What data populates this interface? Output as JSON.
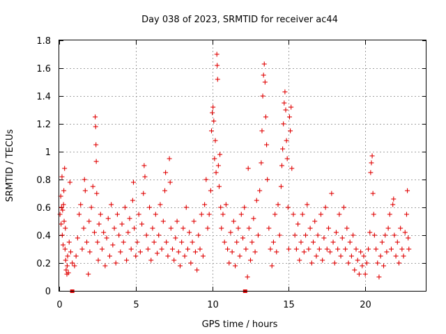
{
  "chart_data": {
    "type": "scatter",
    "title": "Day 038 of 2023, SRMTID for receiver ac44",
    "xlabel": "GPS time / hours",
    "ylabel": "SRMTID / TECUs",
    "xlim": [
      0,
      24
    ],
    "ylim": [
      0,
      1.8
    ],
    "xticks": [
      0,
      5,
      10,
      15,
      20
    ],
    "xtick_labels": [
      "0",
      "5",
      "10",
      "15",
      "20"
    ],
    "yticks": [
      0,
      0.2,
      0.4,
      0.6,
      0.8,
      1,
      1.2,
      1.4,
      1.6,
      1.8
    ],
    "ytick_labels": [
      "0",
      "0.2",
      "0.4",
      "0.6",
      "0.8",
      "1",
      "1.2",
      "1.4",
      "1.6",
      "1.8"
    ],
    "grid": true,
    "marker": "+",
    "color": "#e00000",
    "series": [
      {
        "name": "SRMTID",
        "points": [
          [
            0.05,
            0.55
          ],
          [
            0.1,
            0.68
          ],
          [
            0.12,
            0.48
          ],
          [
            0.15,
            0.6
          ],
          [
            0.18,
            0.82
          ],
          [
            0.2,
            0.4
          ],
          [
            0.22,
            0.58
          ],
          [
            0.25,
            0.33
          ],
          [
            0.28,
            0.62
          ],
          [
            0.3,
            0.72
          ],
          [
            0.32,
            0.5
          ],
          [
            0.35,
            0.88
          ],
          [
            0.38,
            0.3
          ],
          [
            0.4,
            0.45
          ],
          [
            0.42,
            0.22
          ],
          [
            0.45,
            0.15
          ],
          [
            0.5,
            0.12
          ],
          [
            0.52,
            0.18
          ],
          [
            0.55,
            0.25
          ],
          [
            0.6,
            0.13
          ],
          [
            0.65,
            0.35
          ],
          [
            0.7,
            0.78
          ],
          [
            0.75,
            0.28
          ],
          [
            0.85,
            0.2
          ],
          [
            1.0,
            0.18
          ],
          [
            1.1,
            0.25
          ],
          [
            1.2,
            0.38
          ],
          [
            1.3,
            0.55
          ],
          [
            1.4,
            0.62
          ],
          [
            1.5,
            0.3
          ],
          [
            1.6,
            0.45
          ],
          [
            1.65,
            0.8
          ],
          [
            1.7,
            0.72
          ],
          [
            1.8,
            0.35
          ],
          [
            1.9,
            0.12
          ],
          [
            1.95,
            0.5
          ],
          [
            2.0,
            0.28
          ],
          [
            2.1,
            0.6
          ],
          [
            2.2,
            0.75
          ],
          [
            2.3,
            0.42
          ],
          [
            2.35,
            1.25
          ],
          [
            2.38,
            1.18
          ],
          [
            2.4,
            1.05
          ],
          [
            2.42,
            0.93
          ],
          [
            2.45,
            0.7
          ],
          [
            2.5,
            0.35
          ],
          [
            2.55,
            0.22
          ],
          [
            2.6,
            0.48
          ],
          [
            2.7,
            0.55
          ],
          [
            2.8,
            0.3
          ],
          [
            2.9,
            0.42
          ],
          [
            3.0,
            0.18
          ],
          [
            3.1,
            0.38
          ],
          [
            3.2,
            0.52
          ],
          [
            3.3,
            0.25
          ],
          [
            3.4,
            0.62
          ],
          [
            3.5,
            0.33
          ],
          [
            3.6,
            0.45
          ],
          [
            3.7,
            0.2
          ],
          [
            3.8,
            0.55
          ],
          [
            3.9,
            0.4
          ],
          [
            4.0,
            0.28
          ],
          [
            4.1,
            0.48
          ],
          [
            4.2,
            0.35
          ],
          [
            4.3,
            0.6
          ],
          [
            4.4,
            0.22
          ],
          [
            4.5,
            0.42
          ],
          [
            4.6,
            0.52
          ],
          [
            4.7,
            0.3
          ],
          [
            4.8,
            0.65
          ],
          [
            4.85,
            0.78
          ],
          [
            4.9,
            0.45
          ],
          [
            5.0,
            0.25
          ],
          [
            5.1,
            0.35
          ],
          [
            5.2,
            0.55
          ],
          [
            5.3,
            0.28
          ],
          [
            5.4,
            0.48
          ],
          [
            5.5,
            0.7
          ],
          [
            5.55,
            0.9
          ],
          [
            5.6,
            0.82
          ],
          [
            5.7,
            0.4
          ],
          [
            5.8,
            0.3
          ],
          [
            5.9,
            0.6
          ],
          [
            6.0,
            0.22
          ],
          [
            6.1,
            0.45
          ],
          [
            6.2,
            0.35
          ],
          [
            6.3,
            0.55
          ],
          [
            6.4,
            0.27
          ],
          [
            6.5,
            0.4
          ],
          [
            6.6,
            0.62
          ],
          [
            6.7,
            0.3
          ],
          [
            6.8,
            0.5
          ],
          [
            6.9,
            0.72
          ],
          [
            6.95,
            0.85
          ],
          [
            7.0,
            0.35
          ],
          [
            7.1,
            0.25
          ],
          [
            7.2,
            0.95
          ],
          [
            7.25,
            0.78
          ],
          [
            7.3,
            0.45
          ],
          [
            7.4,
            0.3
          ],
          [
            7.5,
            0.22
          ],
          [
            7.6,
            0.38
          ],
          [
            7.7,
            0.5
          ],
          [
            7.8,
            0.28
          ],
          [
            7.9,
            0.18
          ],
          [
            8.0,
            0.35
          ],
          [
            8.1,
            0.45
          ],
          [
            8.2,
            0.25
          ],
          [
            8.3,
            0.6
          ],
          [
            8.4,
            0.3
          ],
          [
            8.5,
            0.42
          ],
          [
            8.6,
            0.2
          ],
          [
            8.7,
            0.35
          ],
          [
            8.8,
            0.5
          ],
          [
            8.9,
            0.28
          ],
          [
            9.0,
            0.15
          ],
          [
            9.1,
            0.4
          ],
          [
            9.2,
            0.3
          ],
          [
            9.3,
            0.55
          ],
          [
            9.4,
            0.25
          ],
          [
            9.5,
            0.62
          ],
          [
            9.6,
            0.8
          ],
          [
            9.7,
            0.45
          ],
          [
            9.8,
            0.55
          ],
          [
            9.9,
            0.72
          ],
          [
            9.95,
            1.15
          ],
          [
            10.0,
            1.28
          ],
          [
            10.05,
            1.32
          ],
          [
            10.1,
            1.22
          ],
          [
            10.15,
            0.95
          ],
          [
            10.2,
            1.08
          ],
          [
            10.25,
            0.85
          ],
          [
            10.3,
            1.7
          ],
          [
            10.32,
            1.62
          ],
          [
            10.35,
            1.52
          ],
          [
            10.4,
            0.9
          ],
          [
            10.45,
            0.75
          ],
          [
            10.5,
            0.98
          ],
          [
            10.55,
            0.6
          ],
          [
            10.6,
            0.45
          ],
          [
            10.7,
            0.55
          ],
          [
            10.8,
            0.35
          ],
          [
            10.9,
            0.62
          ],
          [
            11.0,
            0.3
          ],
          [
            11.1,
            0.2
          ],
          [
            11.2,
            0.42
          ],
          [
            11.3,
            0.28
          ],
          [
            11.4,
            0.5
          ],
          [
            11.5,
            0.18
          ],
          [
            11.6,
            0.35
          ],
          [
            11.7,
            0.45
          ],
          [
            11.8,
            0.25
          ],
          [
            11.9,
            0.55
          ],
          [
            12.0,
            0.38
          ],
          [
            12.1,
            0.6
          ],
          [
            12.2,
            0.3
          ],
          [
            12.3,
            0.1
          ],
          [
            12.35,
            0.88
          ],
          [
            12.4,
            0.45
          ],
          [
            12.5,
            0.22
          ],
          [
            12.6,
            0.35
          ],
          [
            12.7,
            0.52
          ],
          [
            12.8,
            0.28
          ],
          [
            12.9,
            0.65
          ],
          [
            13.0,
            0.4
          ],
          [
            13.1,
            0.72
          ],
          [
            13.2,
            0.92
          ],
          [
            13.25,
            1.15
          ],
          [
            13.3,
            1.4
          ],
          [
            13.35,
            1.55
          ],
          [
            13.4,
            1.63
          ],
          [
            13.45,
            1.5
          ],
          [
            13.5,
            1.25
          ],
          [
            13.55,
            1.05
          ],
          [
            13.6,
            0.8
          ],
          [
            13.7,
            0.45
          ],
          [
            13.8,
            0.3
          ],
          [
            13.9,
            0.18
          ],
          [
            14.0,
            0.35
          ],
          [
            14.1,
            0.55
          ],
          [
            14.2,
            0.28
          ],
          [
            14.3,
            0.62
          ],
          [
            14.4,
            0.4
          ],
          [
            14.5,
            0.75
          ],
          [
            14.55,
            0.9
          ],
          [
            14.6,
            1.02
          ],
          [
            14.65,
            1.2
          ],
          [
            14.7,
            1.35
          ],
          [
            14.75,
            1.43
          ],
          [
            14.8,
            1.3
          ],
          [
            14.85,
            1.08
          ],
          [
            14.9,
            0.95
          ],
          [
            14.95,
            0.6
          ],
          [
            15.0,
            0.3
          ],
          [
            15.05,
            1.25
          ],
          [
            15.1,
            1.15
          ],
          [
            15.15,
            1.32
          ],
          [
            15.2,
            0.88
          ],
          [
            15.3,
            0.55
          ],
          [
            15.4,
            0.4
          ],
          [
            15.5,
            0.3
          ],
          [
            15.6,
            0.48
          ],
          [
            15.7,
            0.22
          ],
          [
            15.8,
            0.35
          ],
          [
            15.9,
            0.55
          ],
          [
            16.0,
            0.28
          ],
          [
            16.1,
            0.4
          ],
          [
            16.2,
            0.62
          ],
          [
            16.3,
            0.3
          ],
          [
            16.4,
            0.45
          ],
          [
            16.5,
            0.2
          ],
          [
            16.6,
            0.35
          ],
          [
            16.7,
            0.5
          ],
          [
            16.8,
            0.25
          ],
          [
            16.9,
            0.4
          ],
          [
            17.0,
            0.3
          ],
          [
            17.1,
            0.55
          ],
          [
            17.2,
            0.22
          ],
          [
            17.3,
            0.38
          ],
          [
            17.4,
            0.6
          ],
          [
            17.5,
            0.3
          ],
          [
            17.6,
            0.45
          ],
          [
            17.7,
            0.28
          ],
          [
            17.8,
            0.7
          ],
          [
            17.9,
            0.35
          ],
          [
            18.0,
            0.2
          ],
          [
            18.1,
            0.42
          ],
          [
            18.2,
            0.3
          ],
          [
            18.3,
            0.55
          ],
          [
            18.4,
            0.25
          ],
          [
            18.5,
            0.38
          ],
          [
            18.6,
            0.6
          ],
          [
            18.7,
            0.3
          ],
          [
            18.8,
            0.45
          ],
          [
            18.9,
            0.2
          ],
          [
            19.0,
            0.35
          ],
          [
            19.1,
            0.25
          ],
          [
            19.2,
            0.4
          ],
          [
            19.3,
            0.15
          ],
          [
            19.4,
            0.3
          ],
          [
            19.5,
            0.22
          ],
          [
            19.6,
            0.12
          ],
          [
            19.7,
            0.28
          ],
          [
            19.8,
            0.18
          ],
          [
            19.9,
            0.25
          ],
          [
            20.0,
            0.12
          ],
          [
            20.1,
            0.2
          ],
          [
            20.2,
            0.3
          ],
          [
            20.3,
            0.42
          ],
          [
            20.35,
            0.85
          ],
          [
            20.4,
            0.92
          ],
          [
            20.45,
            0.97
          ],
          [
            20.5,
            0.7
          ],
          [
            20.55,
            0.55
          ],
          [
            20.6,
            0.4
          ],
          [
            20.7,
            0.3
          ],
          [
            20.8,
            0.2
          ],
          [
            20.9,
            0.1
          ],
          [
            21.0,
            0.25
          ],
          [
            21.1,
            0.35
          ],
          [
            21.2,
            0.18
          ],
          [
            21.3,
            0.4
          ],
          [
            21.4,
            0.28
          ],
          [
            21.5,
            0.45
          ],
          [
            21.6,
            0.55
          ],
          [
            21.7,
            0.3
          ],
          [
            21.8,
            0.62
          ],
          [
            21.85,
            0.66
          ],
          [
            21.9,
            0.4
          ],
          [
            22.0,
            0.25
          ],
          [
            22.1,
            0.35
          ],
          [
            22.2,
            0.2
          ],
          [
            22.3,
            0.45
          ],
          [
            22.4,
            0.3
          ],
          [
            22.5,
            0.25
          ],
          [
            22.6,
            0.42
          ],
          [
            22.7,
            0.55
          ],
          [
            22.75,
            0.72
          ],
          [
            22.8,
            0.38
          ],
          [
            22.85,
            0.3
          ]
        ]
      }
    ],
    "outlier_markers": [
      [
        0.85,
        0.0
      ],
      [
        12.15,
        0.0
      ]
    ]
  }
}
